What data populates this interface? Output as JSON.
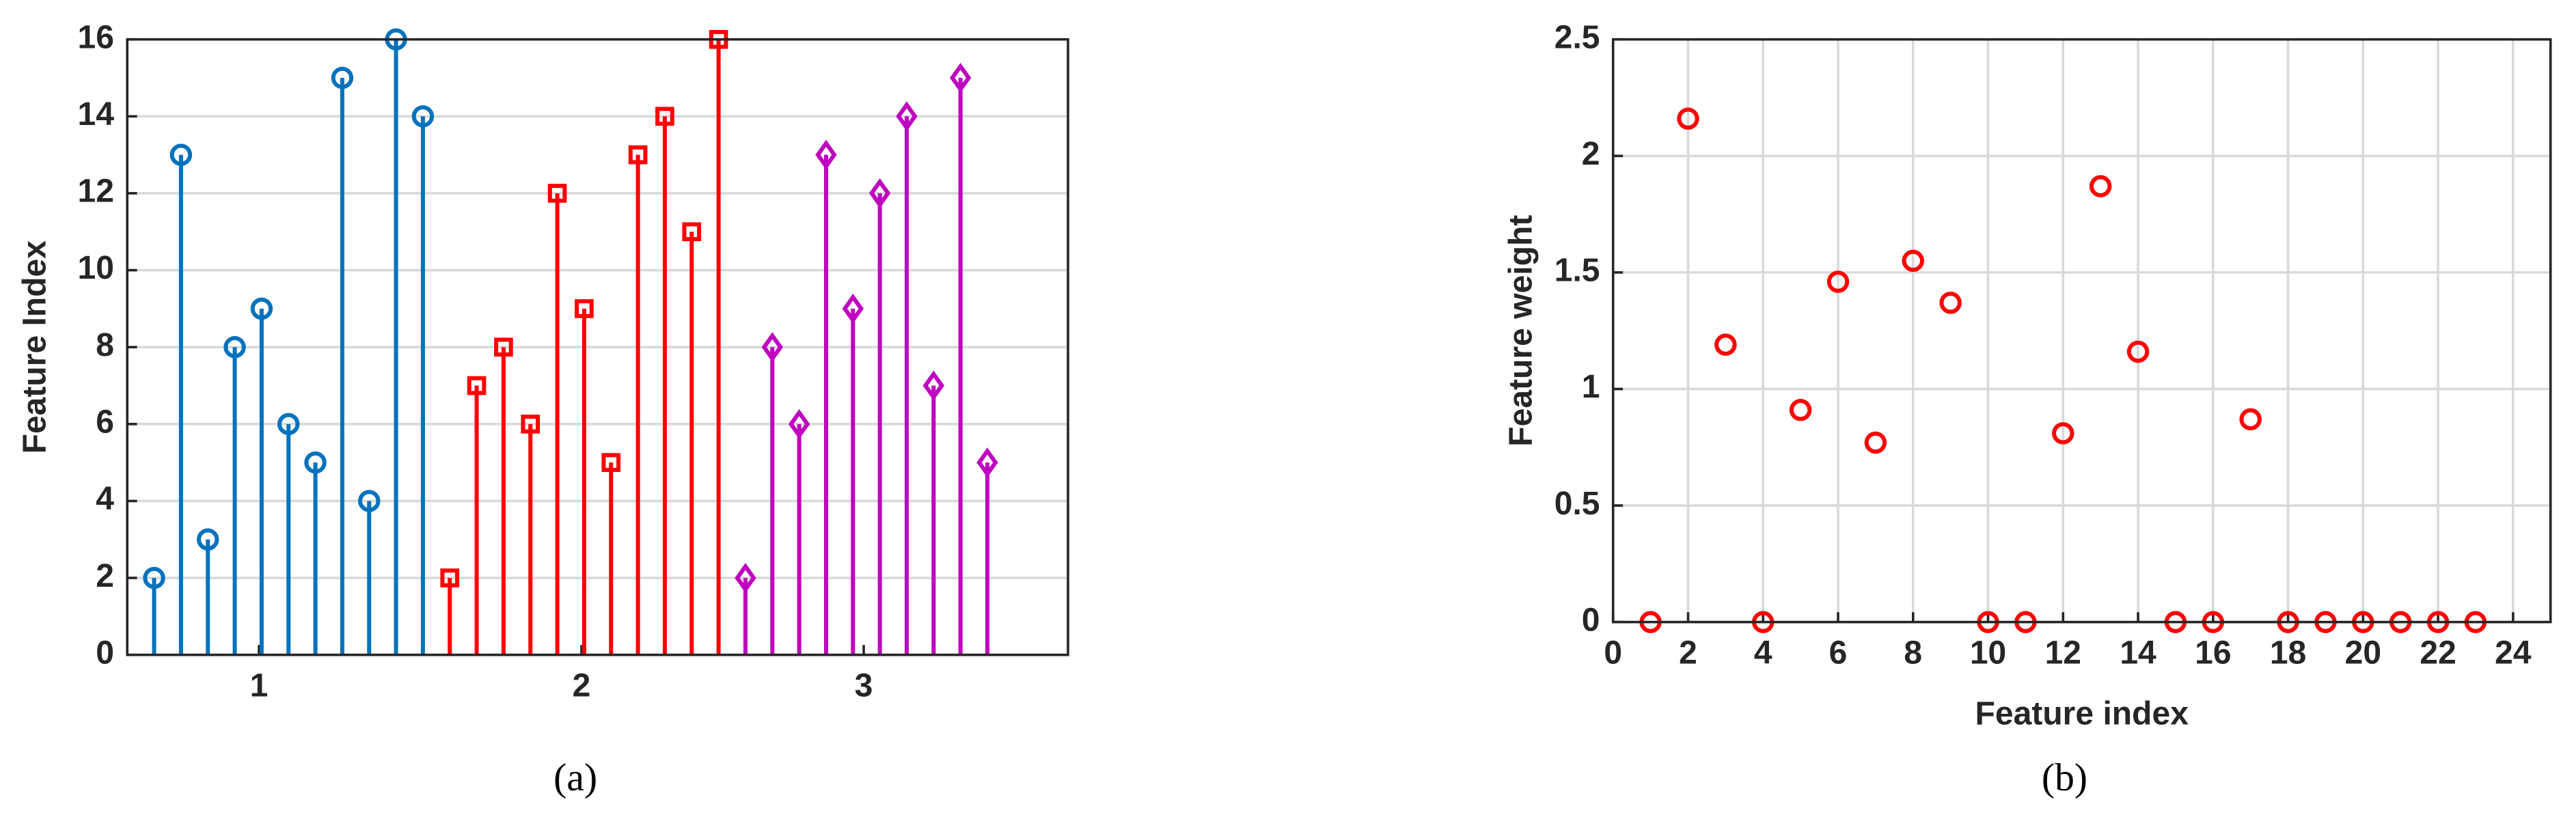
{
  "chart_data": [
    {
      "type": "stem",
      "caption": "(a)",
      "ylabel": "Feature Index",
      "xlim": [
        0,
        35
      ],
      "xticks": [
        {
          "value": 4.9,
          "label": "1"
        },
        {
          "value": 16.9,
          "label": "2"
        },
        {
          "value": 27.4,
          "label": "3"
        }
      ],
      "ylim": [
        0,
        16
      ],
      "yticks": [
        0,
        2,
        4,
        6,
        8,
        10,
        12,
        14,
        16
      ],
      "grid": "y",
      "series": [
        {
          "color": "#0072bd",
          "marker": "circle",
          "x": [
            1,
            2,
            3,
            4,
            5,
            6,
            7,
            8,
            9,
            10,
            11
          ],
          "values": [
            2,
            13,
            3,
            8,
            9,
            6,
            5,
            15,
            4,
            16,
            14
          ]
        },
        {
          "color": "#ff0000",
          "marker": "square",
          "x": [
            12,
            13,
            14,
            15,
            16,
            17,
            18,
            19,
            20,
            21,
            22
          ],
          "values": [
            2,
            7,
            8,
            6,
            12,
            9,
            5,
            13,
            14,
            11,
            16
          ]
        },
        {
          "color": "#bf00bf",
          "marker": "diamond",
          "x": [
            23,
            24,
            25,
            26,
            27,
            28,
            29,
            30,
            31,
            32
          ],
          "values": [
            2,
            8,
            6,
            13,
            9,
            12,
            14,
            7,
            15,
            5
          ]
        }
      ]
    },
    {
      "type": "scatter",
      "caption": "(b)",
      "xlabel": "Feature index",
      "ylabel": "Feature weight",
      "xlim": [
        0,
        25
      ],
      "xticks": [
        0,
        2,
        4,
        6,
        8,
        10,
        12,
        14,
        16,
        18,
        20,
        22,
        24
      ],
      "ylim": [
        0,
        2.5
      ],
      "yticks": [
        0,
        0.5,
        1,
        1.5,
        2,
        2.5
      ],
      "grid": "both",
      "series": [
        {
          "color": "#ff0000",
          "marker": "circle",
          "x": [
            1,
            2,
            3,
            4,
            5,
            6,
            7,
            8,
            9,
            10,
            11,
            12,
            13,
            14,
            15,
            16,
            17,
            18,
            19,
            20,
            21,
            22,
            23
          ],
          "values": [
            0,
            2.16,
            1.19,
            0,
            0.91,
            1.46,
            0.77,
            1.55,
            1.37,
            0,
            0,
            0.81,
            1.87,
            1.16,
            0,
            0,
            0.87,
            0,
            0,
            0,
            0,
            0,
            0
          ]
        }
      ]
    }
  ]
}
